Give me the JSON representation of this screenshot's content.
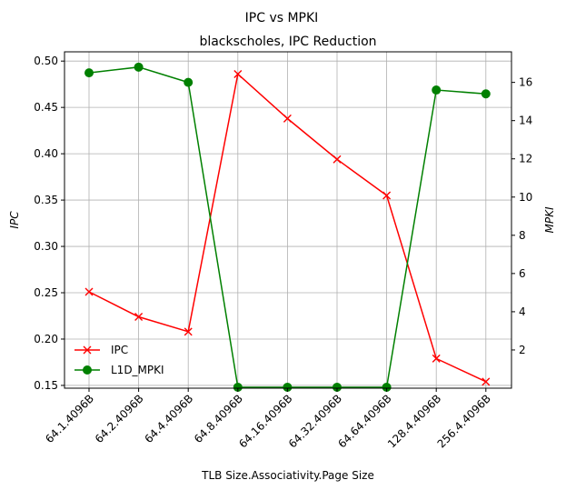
{
  "chart_data": {
    "type": "line",
    "title": "IPC vs MPKI",
    "subtitle": "blackscholes, IPC Reduction",
    "xlabel": "TLB Size.Associativity.Page Size",
    "ylabel_left": "IPC",
    "ylabel_right": "MPKI",
    "categories": [
      "64.1.4096B",
      "64.2.4096B",
      "64.4.4096B",
      "64.8.4096B",
      "64.16.4096B",
      "64.32.4096B",
      "64.64.4096B",
      "128.4.4096B",
      "256.4.4096B"
    ],
    "ylim_left": [
      0.147,
      0.51
    ],
    "ylim_right": [
      0.0,
      17.6
    ],
    "yticks_left": [
      "0.15",
      "0.20",
      "0.25",
      "0.30",
      "0.35",
      "0.40",
      "0.45",
      "0.50"
    ],
    "yticks_right": [
      "2",
      "4",
      "6",
      "8",
      "10",
      "12",
      "14",
      "16"
    ],
    "grid": true,
    "legend_position": "lower-left",
    "series": [
      {
        "name": "IPC",
        "axis": "left",
        "color": "#ff0000",
        "marker": "x",
        "values": [
          0.251,
          0.224,
          0.208,
          0.486,
          0.438,
          0.394,
          0.355,
          0.179,
          0.154
        ]
      },
      {
        "name": "L1D_MPKI",
        "axis": "right",
        "color": "#008000",
        "marker": "o",
        "values": [
          16.5,
          16.8,
          16.0,
          0.05,
          0.05,
          0.05,
          0.05,
          15.6,
          15.4
        ]
      }
    ]
  }
}
